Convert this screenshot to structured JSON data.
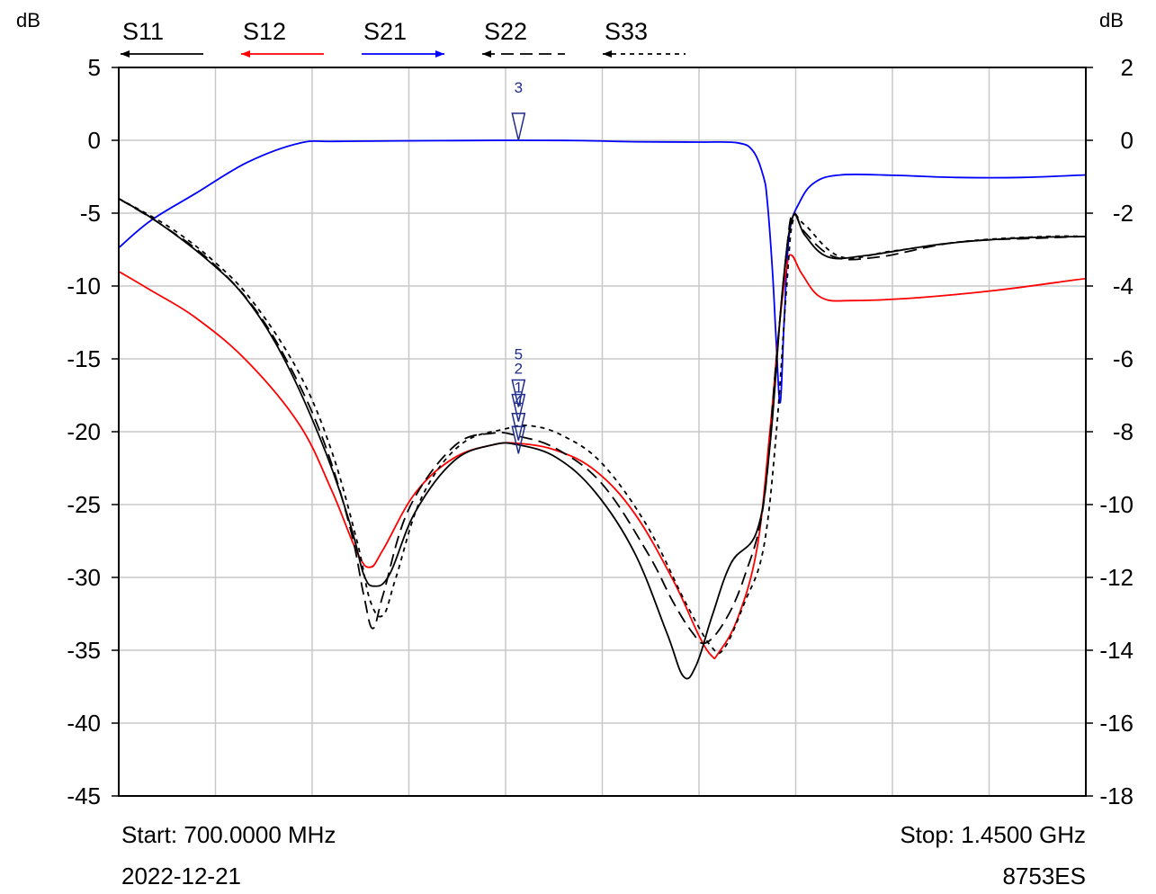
{
  "chart_data": {
    "type": "line",
    "x_range_mhz": [
      700,
      1450
    ],
    "left_axis": {
      "unit": "dB",
      "ylim": [
        -45,
        5
      ],
      "ticks": [
        "5",
        "0",
        "-5",
        "-10",
        "-15",
        "-20",
        "-25",
        "-30",
        "-35",
        "-40",
        "-45"
      ]
    },
    "right_axis": {
      "unit": "dB",
      "ylim": [
        -18,
        2
      ],
      "ticks": [
        "2",
        "0",
        "-2",
        "-4",
        "-6",
        "-8",
        "-10",
        "-12",
        "-14",
        "-16",
        "-18"
      ]
    },
    "grid": true,
    "x_divisions": 10,
    "legend": [
      {
        "name": "S11",
        "color": "#000000",
        "style": "solid",
        "arrow": "left"
      },
      {
        "name": "S12",
        "color": "#ff0000",
        "style": "solid",
        "arrow": "left"
      },
      {
        "name": "S21",
        "color": "#0000ff",
        "style": "solid",
        "arrow": "right"
      },
      {
        "name": "S22",
        "color": "#000000",
        "style": "long-dash",
        "arrow": "left"
      },
      {
        "name": "S33",
        "color": "#000000",
        "style": "short-dash",
        "arrow": "left"
      }
    ],
    "series": [
      {
        "name": "S21",
        "axis": "right",
        "color": "#0000ff",
        "dash": "",
        "points": [
          [
            700,
            -2.95
          ],
          [
            725,
            -2.2
          ],
          [
            760,
            -1.45
          ],
          [
            800,
            -0.6
          ],
          [
            840,
            -0.08
          ],
          [
            870,
            -0.03
          ],
          [
            950,
            -0.01
          ],
          [
            1010,
            0.0
          ],
          [
            1060,
            -0.01
          ],
          [
            1100,
            -0.04
          ],
          [
            1150,
            -0.05
          ],
          [
            1180,
            -0.07
          ],
          [
            1192,
            -0.3
          ],
          [
            1200,
            -1.0
          ],
          [
            1203,
            -1.7
          ],
          [
            1207,
            -3.6
          ],
          [
            1210,
            -5.6
          ],
          [
            1213,
            -7.2
          ],
          [
            1216,
            -5.0
          ],
          [
            1220,
            -2.6
          ],
          [
            1228,
            -1.7
          ],
          [
            1240,
            -1.15
          ],
          [
            1260,
            -0.95
          ],
          [
            1300,
            -0.96
          ],
          [
            1350,
            -1.02
          ],
          [
            1400,
            -1.02
          ],
          [
            1450,
            -0.95
          ]
        ]
      },
      {
        "name": "S12",
        "axis": "left",
        "color": "#ff0000",
        "dash": "",
        "points": [
          [
            700,
            -9.0
          ],
          [
            725,
            -10.3
          ],
          [
            760,
            -12.2
          ],
          [
            800,
            -15.2
          ],
          [
            840,
            -19.5
          ],
          [
            865,
            -24.0
          ],
          [
            885,
            -28.3
          ],
          [
            895,
            -29.3
          ],
          [
            905,
            -28.1
          ],
          [
            930,
            -24.2
          ],
          [
            960,
            -21.8
          ],
          [
            990,
            -20.9
          ],
          [
            1010,
            -20.8
          ],
          [
            1040,
            -21.3
          ],
          [
            1070,
            -22.7
          ],
          [
            1100,
            -25.6
          ],
          [
            1130,
            -30.2
          ],
          [
            1150,
            -34.0
          ],
          [
            1160,
            -35.4
          ],
          [
            1165,
            -35.2
          ],
          [
            1180,
            -32.8
          ],
          [
            1195,
            -28.0
          ],
          [
            1205,
            -20.0
          ],
          [
            1212,
            -13.0
          ],
          [
            1218,
            -8.7
          ],
          [
            1222,
            -7.9
          ],
          [
            1230,
            -9.2
          ],
          [
            1245,
            -10.8
          ],
          [
            1270,
            -11.0
          ],
          [
            1320,
            -10.8
          ],
          [
            1380,
            -10.3
          ],
          [
            1440,
            -9.6
          ],
          [
            1450,
            -9.5
          ]
        ]
      },
      {
        "name": "S11",
        "axis": "left",
        "color": "#000000",
        "dash": "",
        "points": [
          [
            700,
            -4.0
          ],
          [
            730,
            -5.6
          ],
          [
            770,
            -8.3
          ],
          [
            800,
            -11.0
          ],
          [
            830,
            -15.3
          ],
          [
            860,
            -21.3
          ],
          [
            880,
            -26.5
          ],
          [
            890,
            -29.8
          ],
          [
            898,
            -30.6
          ],
          [
            910,
            -29.8
          ],
          [
            930,
            -25.5
          ],
          [
            960,
            -22.0
          ],
          [
            990,
            -20.9
          ],
          [
            1010,
            -20.9
          ],
          [
            1040,
            -21.8
          ],
          [
            1070,
            -24.2
          ],
          [
            1100,
            -28.3
          ],
          [
            1125,
            -33.8
          ],
          [
            1138,
            -36.8
          ],
          [
            1148,
            -36.0
          ],
          [
            1160,
            -32.7
          ],
          [
            1175,
            -29.0
          ],
          [
            1195,
            -26.8
          ],
          [
            1205,
            -21.0
          ],
          [
            1215,
            -10.0
          ],
          [
            1223,
            -5.2
          ],
          [
            1232,
            -6.5
          ],
          [
            1250,
            -8.0
          ],
          [
            1280,
            -7.9
          ],
          [
            1340,
            -7.1
          ],
          [
            1400,
            -6.7
          ],
          [
            1450,
            -6.6
          ]
        ]
      },
      {
        "name": "S22",
        "axis": "left",
        "color": "#000000",
        "dash": "14,7",
        "points": [
          [
            700,
            -4.0
          ],
          [
            735,
            -5.9
          ],
          [
            770,
            -8.2
          ],
          [
            805,
            -11.5
          ],
          [
            835,
            -15.9
          ],
          [
            860,
            -20.9
          ],
          [
            880,
            -26.8
          ],
          [
            890,
            -31.2
          ],
          [
            897,
            -33.5
          ],
          [
            905,
            -31.2
          ],
          [
            925,
            -25.3
          ],
          [
            960,
            -21.0
          ],
          [
            990,
            -20.1
          ],
          [
            1010,
            -20.3
          ],
          [
            1040,
            -21.2
          ],
          [
            1075,
            -23.6
          ],
          [
            1110,
            -28.3
          ],
          [
            1130,
            -31.7
          ],
          [
            1145,
            -33.8
          ],
          [
            1155,
            -34.5
          ],
          [
            1170,
            -33.0
          ],
          [
            1185,
            -30.0
          ],
          [
            1200,
            -25.0
          ],
          [
            1210,
            -15.0
          ],
          [
            1218,
            -7.5
          ],
          [
            1223,
            -5.0
          ],
          [
            1232,
            -6.3
          ],
          [
            1255,
            -8.0
          ],
          [
            1290,
            -8.0
          ],
          [
            1350,
            -7.0
          ],
          [
            1420,
            -6.7
          ],
          [
            1450,
            -6.6
          ]
        ]
      },
      {
        "name": "S33",
        "axis": "left",
        "color": "#000000",
        "dash": "5,5",
        "points": [
          [
            700,
            -4.0
          ],
          [
            740,
            -6.0
          ],
          [
            775,
            -8.4
          ],
          [
            805,
            -11.2
          ],
          [
            840,
            -16.0
          ],
          [
            865,
            -21.3
          ],
          [
            885,
            -27.6
          ],
          [
            895,
            -31.6
          ],
          [
            905,
            -32.6
          ],
          [
            915,
            -30.0
          ],
          [
            935,
            -24.5
          ],
          [
            965,
            -20.9
          ],
          [
            1000,
            -19.8
          ],
          [
            1020,
            -19.6
          ],
          [
            1045,
            -20.3
          ],
          [
            1075,
            -22.2
          ],
          [
            1110,
            -26.5
          ],
          [
            1140,
            -31.8
          ],
          [
            1160,
            -34.8
          ],
          [
            1170,
            -34.8
          ],
          [
            1185,
            -31.8
          ],
          [
            1200,
            -28.0
          ],
          [
            1210,
            -20.0
          ],
          [
            1218,
            -10.0
          ],
          [
            1223,
            -5.5
          ],
          [
            1232,
            -5.8
          ],
          [
            1260,
            -8.0
          ],
          [
            1300,
            -7.6
          ],
          [
            1360,
            -6.9
          ],
          [
            1420,
            -6.6
          ],
          [
            1450,
            -6.6
          ]
        ]
      }
    ],
    "markers": [
      {
        "label": "3",
        "freq_mhz": 1010,
        "level_db": 0
      },
      {
        "label": "5",
        "freq_mhz": 1010,
        "level_db": -18.3
      },
      {
        "label": "2",
        "freq_mhz": 1010,
        "level_db": -19.3
      },
      {
        "label": "1",
        "freq_mhz": 1010,
        "level_db": -20.6
      },
      {
        "label": "4",
        "freq_mhz": 1010,
        "level_db": -21.5
      }
    ],
    "start_label": "Start: 700.0000 MHz",
    "stop_label": "Stop: 1.4500 GHz",
    "date": "2022-12-21",
    "instrument": "8753ES"
  }
}
